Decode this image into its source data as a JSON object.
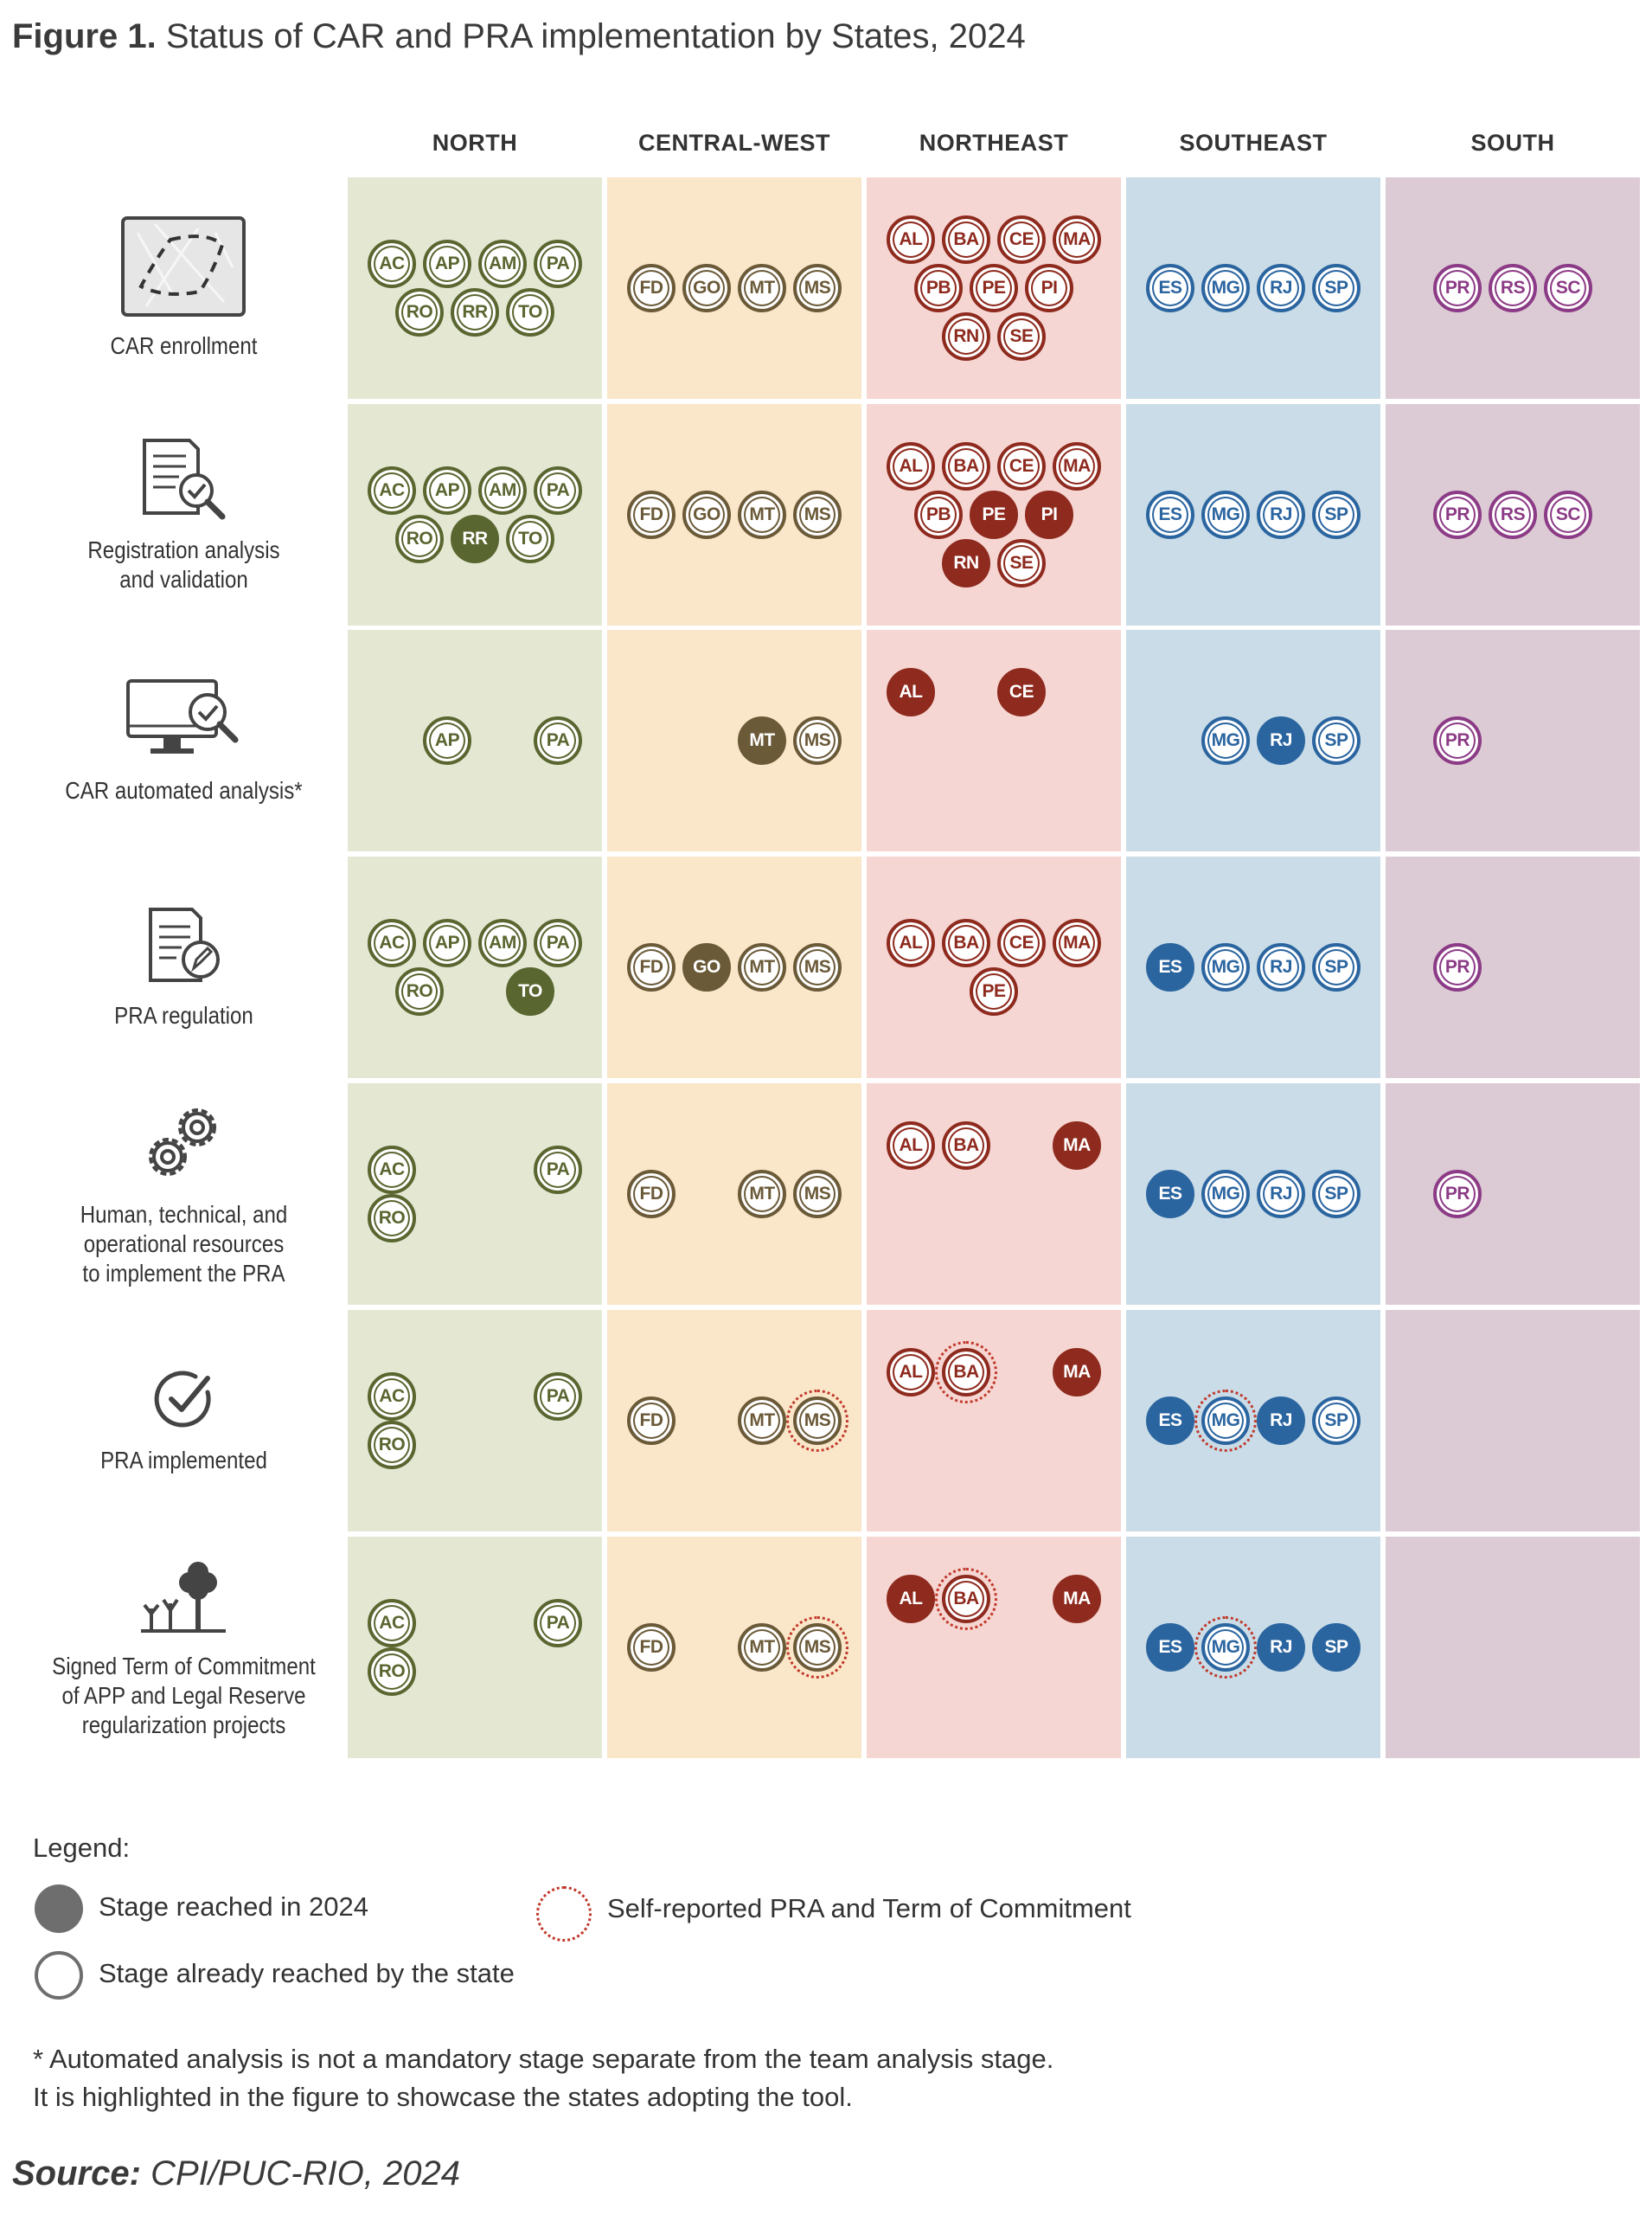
{
  "figure": {
    "title_prefix": "Figure 1.",
    "title_text": "Status of CAR and PRA implementation by States, 2024"
  },
  "regions": [
    {
      "key": "north",
      "label": "NORTH",
      "bg": "#e4e8d3",
      "fill": "#5a6630"
    },
    {
      "key": "central_west",
      "label": "CENTRAL-WEST",
      "bg": "#fae6c8",
      "fill": "#6b5a38"
    },
    {
      "key": "northeast",
      "label": "NORTHEAST",
      "bg": "#f6d6d2",
      "fill": "#8e2a1e"
    },
    {
      "key": "southeast",
      "label": "SOUTHEAST",
      "bg": "#c9dce7",
      "fill": "#2b65a0"
    },
    {
      "key": "south",
      "label": "SOUTH",
      "bg": "#dccbd4",
      "fill": "#8c3b86"
    }
  ],
  "stages": [
    {
      "label": "CAR enrollment",
      "icon": "map-area-icon",
      "cells": {
        "north": {
          "rows": [
            [
              "AC",
              "AP",
              "AM",
              "PA"
            ],
            [
              "RO",
              "RR",
              "TO"
            ]
          ],
          "filled": [],
          "dotted": []
        },
        "central_west": {
          "rows": [
            [
              "FD",
              "GO",
              "MT",
              "MS"
            ]
          ],
          "filled": [],
          "dotted": []
        },
        "northeast": {
          "rows": [
            [
              "AL",
              "BA",
              "CE",
              "MA"
            ],
            [
              "PB",
              "PE",
              "PI"
            ],
            [
              "RN",
              "SE"
            ]
          ],
          "filled": [],
          "dotted": []
        },
        "southeast": {
          "rows": [
            [
              "ES",
              "MG",
              "RJ",
              "SP"
            ]
          ],
          "filled": [],
          "dotted": []
        },
        "south": {
          "rows": [
            [
              "PR",
              "RS",
              "SC"
            ]
          ],
          "filled": [],
          "dotted": []
        }
      }
    },
    {
      "label": "Registration analysis\nand validation",
      "icon": "document-search-icon",
      "cells": {
        "north": {
          "rows": [
            [
              "AC",
              "AP",
              "AM",
              "PA"
            ],
            [
              "RO",
              "RR",
              "TO"
            ]
          ],
          "filled": [
            "RR"
          ],
          "dotted": []
        },
        "central_west": {
          "rows": [
            [
              "FD",
              "GO",
              "MT",
              "MS"
            ]
          ],
          "filled": [],
          "dotted": []
        },
        "northeast": {
          "rows": [
            [
              "AL",
              "BA",
              "CE",
              "MA"
            ],
            [
              "PB",
              "PE",
              "PI"
            ],
            [
              "RN",
              "SE"
            ]
          ],
          "filled": [
            "PE",
            "PI",
            "RN"
          ],
          "dotted": []
        },
        "southeast": {
          "rows": [
            [
              "ES",
              "MG",
              "RJ",
              "SP"
            ]
          ],
          "filled": [],
          "dotted": []
        },
        "south": {
          "rows": [
            [
              "PR",
              "RS",
              "SC"
            ]
          ],
          "filled": [],
          "dotted": []
        }
      }
    },
    {
      "label": "CAR automated analysis*",
      "icon": "computer-check-icon",
      "cells": {
        "north": {
          "rows": [
            [
              "",
              "AP",
              "",
              "PA"
            ]
          ],
          "filled": [],
          "dotted": []
        },
        "central_west": {
          "rows": [
            [
              "",
              "",
              "MT",
              "MS"
            ]
          ],
          "filled": [
            "MT"
          ],
          "dotted": []
        },
        "northeast": {
          "rows": [
            [
              "AL",
              "",
              "CE",
              ""
            ]
          ],
          "filled": [
            "AL",
            "CE"
          ],
          "dotted": [],
          "valign": "top"
        },
        "southeast": {
          "rows": [
            [
              "",
              "MG",
              "RJ",
              "SP"
            ]
          ],
          "filled": [
            "RJ"
          ],
          "dotted": []
        },
        "south": {
          "rows": [
            [
              "PR",
              "",
              ""
            ]
          ],
          "filled": [],
          "dotted": []
        }
      }
    },
    {
      "label": "PRA regulation",
      "icon": "document-pen-icon",
      "cells": {
        "north": {
          "rows": [
            [
              "AC",
              "AP",
              "AM",
              "PA"
            ],
            [
              "RO",
              "",
              "TO"
            ]
          ],
          "filled": [
            "TO"
          ],
          "dotted": []
        },
        "central_west": {
          "rows": [
            [
              "FD",
              "GO",
              "MT",
              "MS"
            ]
          ],
          "filled": [
            "GO"
          ],
          "dotted": []
        },
        "northeast": {
          "rows": [
            [
              "AL",
              "BA",
              "CE",
              "MA"
            ],
            [
              "PE"
            ]
          ],
          "filled": [],
          "dotted": []
        },
        "southeast": {
          "rows": [
            [
              "ES",
              "MG",
              "RJ",
              "SP"
            ]
          ],
          "filled": [
            "ES"
          ],
          "dotted": []
        },
        "south": {
          "rows": [
            [
              "PR",
              "",
              ""
            ]
          ],
          "filled": [],
          "dotted": []
        }
      }
    },
    {
      "label": "Human, technical, and\noperational resources\nto implement the PRA",
      "icon": "gears-icon",
      "cells": {
        "north": {
          "rows": [
            [
              "AC",
              "",
              "",
              "PA"
            ],
            [
              "RO",
              "",
              "",
              ""
            ]
          ],
          "filled": [],
          "dotted": []
        },
        "central_west": {
          "rows": [
            [
              "FD",
              "",
              "MT",
              "MS"
            ]
          ],
          "filled": [],
          "dotted": []
        },
        "northeast": {
          "rows": [
            [
              "AL",
              "BA",
              "",
              "MA"
            ]
          ],
          "filled": [
            "MA"
          ],
          "dotted": [],
          "valign": "top"
        },
        "southeast": {
          "rows": [
            [
              "ES",
              "MG",
              "RJ",
              "SP"
            ]
          ],
          "filled": [
            "ES"
          ],
          "dotted": []
        },
        "south": {
          "rows": [
            [
              "PR",
              "",
              ""
            ]
          ],
          "filled": [],
          "dotted": []
        }
      }
    },
    {
      "label": "PRA implemented",
      "icon": "check-circle-icon",
      "cells": {
        "north": {
          "rows": [
            [
              "AC",
              "",
              "",
              "PA"
            ],
            [
              "RO",
              "",
              "",
              ""
            ]
          ],
          "filled": [],
          "dotted": []
        },
        "central_west": {
          "rows": [
            [
              "FD",
              "",
              "MT",
              "MS"
            ]
          ],
          "filled": [],
          "dotted": [
            "MS"
          ]
        },
        "northeast": {
          "rows": [
            [
              "AL",
              "BA",
              "",
              "MA"
            ]
          ],
          "filled": [
            "MA"
          ],
          "dotted": [
            "BA"
          ],
          "valign": "top"
        },
        "southeast": {
          "rows": [
            [
              "ES",
              "MG",
              "RJ",
              "SP"
            ]
          ],
          "filled": [
            "ES",
            "RJ"
          ],
          "dotted": [
            "MG"
          ]
        },
        "south": {
          "rows": [],
          "filled": [],
          "dotted": []
        }
      }
    },
    {
      "label": "Signed Term of Commitment\nof APP and Legal Reserve\nregularization projects",
      "icon": "trees-icon",
      "cells": {
        "north": {
          "rows": [
            [
              "AC",
              "",
              "",
              "PA"
            ],
            [
              "RO",
              "",
              "",
              ""
            ]
          ],
          "filled": [],
          "dotted": []
        },
        "central_west": {
          "rows": [
            [
              "FD",
              "",
              "MT",
              "MS"
            ]
          ],
          "filled": [],
          "dotted": [
            "MS"
          ]
        },
        "northeast": {
          "rows": [
            [
              "AL",
              "BA",
              "",
              "MA"
            ]
          ],
          "filled": [
            "AL",
            "MA"
          ],
          "dotted": [
            "BA"
          ],
          "valign": "top"
        },
        "southeast": {
          "rows": [
            [
              "ES",
              "MG",
              "RJ",
              "SP"
            ]
          ],
          "filled": [
            "ES",
            "RJ",
            "SP"
          ],
          "dotted": [
            "MG"
          ]
        },
        "south": {
          "rows": [],
          "filled": [],
          "dotted": []
        }
      }
    }
  ],
  "legend": {
    "title": "Legend:",
    "reached_2024": "Stage reached in 2024",
    "already_reached": "Stage already reached by the state",
    "self_reported": "Self-reported PRA and Term of Commitment",
    "dotted_color": "#c0392b",
    "swatch_color": "#6e6e6e"
  },
  "notes": {
    "line1": "* Automated analysis is not a mandatory stage separate from the team analysis stage.",
    "line2": "It is highlighted in the figure to showcase the states adopting the tool."
  },
  "source": {
    "prefix": "Source:",
    "text": "CPI/PUC-RIO, 2024"
  }
}
